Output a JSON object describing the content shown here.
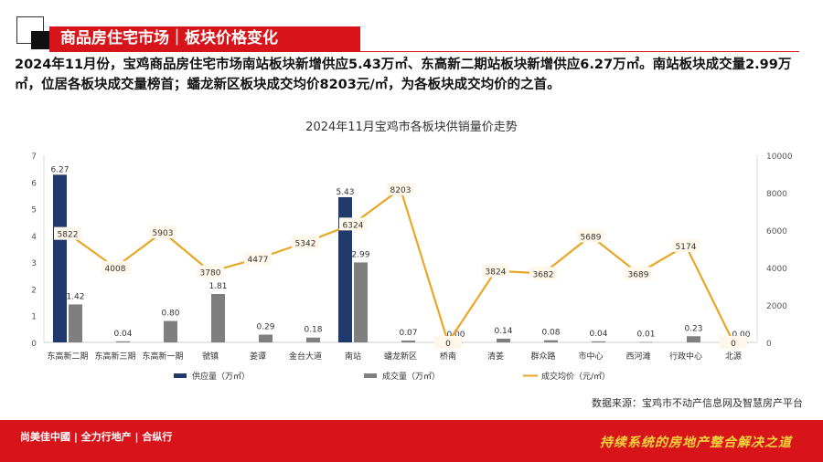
{
  "header": {
    "title": "商品房住宅市场｜板块价格变化"
  },
  "summary": "2024年11月份，宝鸡商品房住宅市场南站板块新增供应5.43万㎡、东高新二期站板块新增供应6.27万㎡。南站板块成交量2.99万㎡，位居各板块成交量榜首；蟠龙新区板块成交均价8203元/㎡，为各板块成交均价的之首。",
  "source": "数据来源：宝鸡市不动产信息网及智慧房产平台",
  "footer": {
    "logo": "尚美佳中國 | 全力行地产 | 合纵行",
    "slogan": "持续系统的房地产整合解决之道"
  },
  "colors": {
    "supply": "#213a6e",
    "deal": "#7f7f7f",
    "price": "#e8a726",
    "brand": "#d7141a"
  },
  "chart_data": {
    "type": "bar+line",
    "title": "2024年11月宝鸡市各板块供销量价走势",
    "categories": [
      "东高新二期",
      "东高新三期",
      "东高新一期",
      "虢镇",
      "姜谭",
      "金台大道",
      "南站",
      "蟠龙新区",
      "桥南",
      "清姜",
      "群众路",
      "市中心",
      "西河滩",
      "行政中心",
      "北源"
    ],
    "series": [
      {
        "name": "供应量（万㎡）",
        "type": "bar",
        "axis": "left",
        "values": [
          6.27,
          0,
          0,
          0,
          0,
          0,
          5.43,
          0,
          0,
          0,
          0,
          0,
          0,
          0,
          0
        ]
      },
      {
        "name": "成交量（万㎡）",
        "type": "bar",
        "axis": "left",
        "values": [
          1.42,
          0.04,
          0.8,
          1.81,
          0.29,
          0.18,
          2.99,
          0.07,
          0.0,
          0.14,
          0.08,
          0.04,
          0.01,
          0.23,
          0.0
        ]
      },
      {
        "name": "成交均价（元/㎡）",
        "type": "line",
        "axis": "right",
        "values": [
          5822,
          4008,
          5903,
          3780,
          4477,
          5342,
          6324,
          8203,
          0,
          3824,
          3682,
          5689,
          3689,
          5174,
          0
        ]
      }
    ],
    "left_axis": {
      "ylim": [
        0,
        7
      ],
      "ticks": [
        0,
        1,
        2,
        3,
        4,
        5,
        6,
        7
      ]
    },
    "right_axis": {
      "ylim": [
        0,
        10000
      ],
      "ticks": [
        0,
        2000,
        4000,
        6000,
        8000,
        10000
      ]
    },
    "legend": "bottom"
  }
}
